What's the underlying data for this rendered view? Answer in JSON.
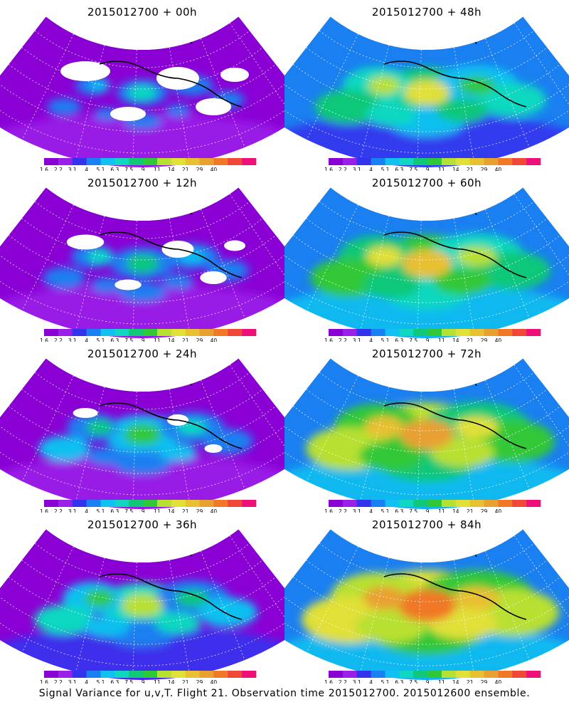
{
  "footer": "Signal Variance for u,v,T. Flight 21. Observation time 2015012700. 2015012600 ensemble.",
  "colorbar": {
    "colors": [
      "#8a00d4",
      "#9a20e8",
      "#3333ee",
      "#1a7ff0",
      "#10c0f0",
      "#10d8c0",
      "#10c878",
      "#30c838",
      "#b8e030",
      "#e0e038",
      "#e8c030",
      "#e8a030",
      "#f07828",
      "#f04838",
      "#ee0f78"
    ],
    "labels": [
      "1.6",
      "2.2",
      "3.1",
      "4",
      "5.1",
      "6.3",
      "7.5",
      "9",
      "11",
      "14",
      "21",
      "29",
      "40"
    ]
  },
  "panels": [
    {
      "title": "2015012700 + 00h",
      "level": 0
    },
    {
      "title": "2015012700 + 48h",
      "level": 4
    },
    {
      "title": "2015012700 + 12h",
      "level": 1
    },
    {
      "title": "2015012700 + 60h",
      "level": 5
    },
    {
      "title": "2015012700 + 24h",
      "level": 2
    },
    {
      "title": "2015012700 + 72h",
      "level": 6
    },
    {
      "title": "2015012700 + 36h",
      "level": 3
    },
    {
      "title": "2015012700 + 84h",
      "level": 7
    }
  ]
}
